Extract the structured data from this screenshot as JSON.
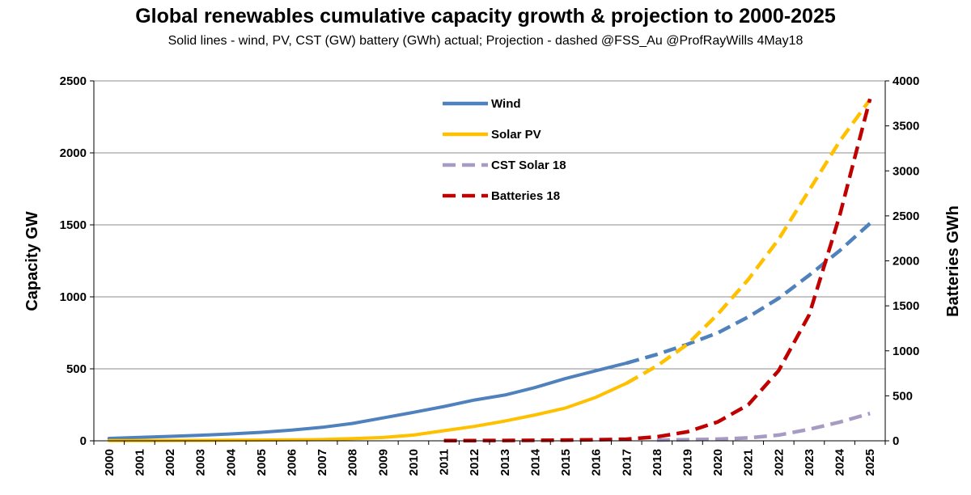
{
  "chart_data": {
    "type": "line",
    "title": "Global renewables cumulative capacity growth & projection to 2000-2025",
    "subtitle": "Solid lines - wind, PV, CST (GW) battery (GWh) actual; Projection - dashed @FSS_Au  @ProfRayWills  4May18",
    "ylabel": "Capacity GW",
    "y2label": "Batteries GWh",
    "ylim": [
      0,
      2500
    ],
    "y2lim": [
      0,
      4000
    ],
    "yticks": [
      0,
      500,
      1000,
      1500,
      2000,
      2500
    ],
    "y2ticks": [
      0,
      500,
      1000,
      1500,
      2000,
      2500,
      3000,
      3500,
      4000
    ],
    "x": [
      "2000",
      "2001",
      "2002",
      "2003",
      "2004",
      "2005",
      "2006",
      "2007",
      "2008",
      "2009",
      "2010",
      "2011",
      "2012",
      "2013",
      "2014",
      "2015",
      "2016",
      "2017",
      "2018",
      "2019",
      "2020",
      "2021",
      "2022",
      "2023",
      "2024",
      "2025"
    ],
    "grid": true,
    "legend_position": "top-center",
    "series": [
      {
        "name": "Wind",
        "color": "#4f81bd",
        "axis": "left",
        "actual_range": [
          0,
          17
        ],
        "projection_range": [
          17,
          25
        ],
        "values": [
          17,
          24,
          31,
          39,
          48,
          59,
          74,
          94,
          121,
          159,
          198,
          238,
          283,
          318,
          370,
          433,
          487,
          540,
          600,
          670,
          750,
          860,
          990,
          1150,
          1320,
          1510
        ]
      },
      {
        "name": "Solar PV",
        "color": "#ffc000",
        "axis": "left",
        "actual_range": [
          0,
          17
        ],
        "projection_range": [
          17,
          25
        ],
        "values": [
          1,
          1,
          2,
          3,
          4,
          5,
          7,
          9,
          15,
          23,
          40,
          70,
          100,
          137,
          180,
          228,
          303,
          400,
          520,
          670,
          880,
          1120,
          1400,
          1740,
          2080,
          2370
        ]
      },
      {
        "name": "CST Solar 18",
        "color": "#a89bc3",
        "axis": "left",
        "projection_range": [
          18,
          25
        ],
        "values": [
          null,
          null,
          null,
          null,
          null,
          null,
          null,
          null,
          null,
          null,
          null,
          null,
          null,
          null,
          null,
          null,
          null,
          null,
          5,
          8,
          12,
          20,
          40,
          80,
          130,
          190
        ]
      },
      {
        "name": "Batteries 18",
        "color": "#c00000",
        "axis": "right",
        "projection_range": [
          11,
          25
        ],
        "values": [
          null,
          null,
          null,
          null,
          null,
          null,
          null,
          null,
          null,
          null,
          null,
          2,
          3,
          4,
          5,
          8,
          12,
          18,
          45,
          100,
          210,
          400,
          780,
          1400,
          2500,
          3800
        ]
      }
    ]
  }
}
